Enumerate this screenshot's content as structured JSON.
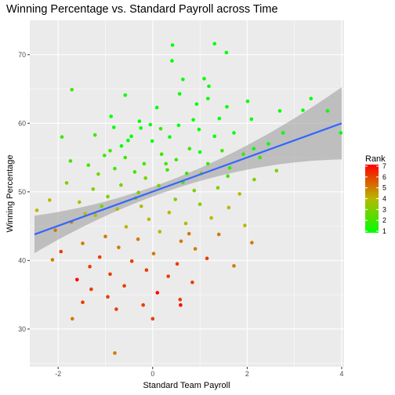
{
  "chart_data": {
    "type": "scatter",
    "title": "Winning Percentage vs. Standard Payroll across Time",
    "xlabel": "Standard Team Payroll",
    "ylabel": "Winning Percentage",
    "xlim": [
      -2.6,
      4.05
    ],
    "ylim": [
      24.5,
      75.0
    ],
    "x_ticks": [
      -2,
      0,
      2,
      4
    ],
    "y_ticks": [
      30,
      40,
      50,
      60,
      70
    ],
    "grid": true,
    "background": "#ebebeb",
    "trend_line": {
      "method": "linear",
      "x": [
        -2.5,
        4.0
      ],
      "y": [
        43.8,
        60.0
      ],
      "color": "#3366ff",
      "band_color": "#999999"
    },
    "legend": {
      "title": "Rank",
      "placement": "right",
      "labels": [
        "7",
        "6",
        "5",
        "4",
        "3",
        "2",
        "1"
      ],
      "values": [
        7,
        6,
        5,
        4,
        3,
        2,
        1
      ],
      "colors": {
        "low": "#00ff00",
        "mid": "#b8b800",
        "high": "#ff0000"
      }
    },
    "points": [
      [
        1.31,
        71.6,
        1
      ],
      [
        0.42,
        71.4,
        1
      ],
      [
        1.56,
        70.3,
        1
      ],
      [
        0.41,
        69.1,
        1
      ],
      [
        0.64,
        66.4,
        1
      ],
      [
        1.09,
        66.5,
        1
      ],
      [
        1.19,
        65.4,
        1
      ],
      [
        -1.71,
        64.9,
        2
      ],
      [
        0.57,
        64.3,
        1
      ],
      [
        -0.58,
        64.1,
        1
      ],
      [
        1.17,
        63.6,
        1
      ],
      [
        3.35,
        63.6,
        1
      ],
      [
        2.01,
        63.2,
        1
      ],
      [
        0.93,
        62.8,
        1
      ],
      [
        1.57,
        62.4,
        1
      ],
      [
        0.09,
        62.3,
        1
      ],
      [
        2.69,
        61.8,
        1
      ],
      [
        3.18,
        61.9,
        1
      ],
      [
        3.7,
        61.8,
        1
      ],
      [
        -0.88,
        61.0,
        1
      ],
      [
        0.86,
        60.5,
        1
      ],
      [
        1.41,
        60.7,
        1
      ],
      [
        2.09,
        60.6,
        1
      ],
      [
        -0.28,
        60.3,
        1
      ],
      [
        -0.05,
        59.8,
        1
      ],
      [
        0.55,
        59.7,
        1
      ],
      [
        -0.82,
        59.4,
        1
      ],
      [
        -0.25,
        59.3,
        1
      ],
      [
        0.17,
        59.2,
        2
      ],
      [
        0.98,
        59.1,
        1
      ],
      [
        1.72,
        58.6,
        1
      ],
      [
        2.76,
        58.6,
        1
      ],
      [
        3.98,
        58.6,
        1
      ],
      [
        -0.45,
        58.1,
        1
      ],
      [
        0.36,
        58.0,
        1
      ],
      [
        -1.22,
        58.3,
        2
      ],
      [
        -1.92,
        58.0,
        2
      ],
      [
        1.31,
        58.1,
        1
      ],
      [
        2.45,
        57.0,
        1
      ],
      [
        -0.01,
        57.4,
        1
      ],
      [
        -0.66,
        56.7,
        1
      ],
      [
        0.78,
        56.3,
        2
      ],
      [
        2.14,
        56.3,
        1
      ],
      [
        -0.9,
        56.0,
        2
      ],
      [
        1.0,
        55.8,
        1
      ],
      [
        0.19,
        55.5,
        2
      ],
      [
        -1.02,
        55.3,
        2
      ],
      [
        1.92,
        55.5,
        2
      ],
      [
        -0.58,
        55.0,
        2
      ],
      [
        2.27,
        55.0,
        2
      ],
      [
        0.5,
        54.7,
        2
      ],
      [
        -1.74,
        54.5,
        2
      ],
      [
        1.17,
        54.1,
        2
      ],
      [
        -0.18,
        54.1,
        2
      ],
      [
        -1.36,
        53.9,
        2
      ],
      [
        1.63,
        53.5,
        2
      ],
      [
        -0.8,
        53.4,
        2
      ],
      [
        0.31,
        53.2,
        2
      ],
      [
        2.62,
        53.1,
        3
      ],
      [
        -0.38,
        52.9,
        2
      ],
      [
        0.72,
        52.7,
        2
      ],
      [
        -1.15,
        52.6,
        3
      ],
      [
        1.59,
        52.3,
        2
      ],
      [
        -0.15,
        52.0,
        3
      ],
      [
        2.15,
        51.8,
        3
      ],
      [
        0.64,
        51.4,
        2
      ],
      [
        -1.82,
        51.3,
        3
      ],
      [
        -0.67,
        51.0,
        3
      ],
      [
        0.13,
        50.9,
        3
      ],
      [
        1.38,
        50.6,
        3
      ],
      [
        -1.26,
        50.4,
        3
      ],
      [
        0.88,
        50.2,
        3
      ],
      [
        -0.3,
        49.9,
        3
      ],
      [
        1.84,
        49.7,
        4
      ],
      [
        -0.95,
        49.3,
        3
      ],
      [
        -2.18,
        48.8,
        4
      ],
      [
        0.48,
        48.9,
        3
      ],
      [
        -1.55,
        48.5,
        4
      ],
      [
        1.0,
        48.2,
        3
      ],
      [
        -0.24,
        47.9,
        4
      ],
      [
        1.61,
        47.7,
        4
      ],
      [
        -0.75,
        47.5,
        4
      ],
      [
        -2.45,
        47.3,
        4
      ],
      [
        0.35,
        47.0,
        4
      ],
      [
        -1.21,
        46.6,
        4
      ],
      [
        1.24,
        46.2,
        4
      ],
      [
        -0.08,
        46.0,
        4
      ],
      [
        -1.72,
        45.6,
        5
      ],
      [
        0.7,
        45.4,
        4
      ],
      [
        1.95,
        45.1,
        4
      ],
      [
        -0.56,
        44.9,
        4
      ],
      [
        -2.06,
        44.4,
        5
      ],
      [
        0.15,
        44.2,
        4
      ],
      [
        1.4,
        43.8,
        5
      ],
      [
        -1.0,
        43.5,
        5
      ],
      [
        -0.31,
        43.1,
        5
      ],
      [
        0.6,
        42.8,
        5
      ],
      [
        -1.48,
        42.5,
        5
      ],
      [
        2.1,
        42.6,
        5
      ],
      [
        -0.72,
        41.9,
        5
      ],
      [
        0.9,
        41.7,
        5
      ],
      [
        -1.94,
        41.3,
        6
      ],
      [
        0.02,
        41.0,
        5
      ],
      [
        -1.12,
        40.5,
        6
      ],
      [
        1.15,
        40.3,
        6
      ],
      [
        -0.44,
        39.9,
        6
      ],
      [
        -2.12,
        40.1,
        5
      ],
      [
        0.52,
        39.5,
        6
      ],
      [
        -1.33,
        39.1,
        6
      ],
      [
        1.72,
        39.2,
        5
      ],
      [
        -0.13,
        38.6,
        6
      ],
      [
        -0.9,
        38.0,
        6
      ],
      [
        0.33,
        37.7,
        6
      ],
      [
        -1.6,
        37.2,
        7
      ],
      [
        0.84,
        36.8,
        6
      ],
      [
        -0.6,
        36.3,
        6
      ],
      [
        -1.3,
        35.8,
        6
      ],
      [
        0.1,
        35.3,
        7
      ],
      [
        -0.95,
        34.7,
        6
      ],
      [
        0.58,
        34.3,
        6
      ],
      [
        -1.48,
        33.9,
        6
      ],
      [
        -0.2,
        33.5,
        6
      ],
      [
        0.59,
        33.5,
        7
      ],
      [
        -0.77,
        32.9,
        6
      ],
      [
        -1.7,
        31.5,
        5
      ],
      [
        0.0,
        31.5,
        6
      ],
      [
        -0.8,
        26.5,
        5
      ],
      [
        -1.08,
        47.9,
        3
      ],
      [
        1.47,
        56.0,
        2
      ],
      [
        -0.52,
        57.5,
        1
      ],
      [
        0.28,
        54.1,
        2
      ],
      [
        1.03,
        52.7,
        3
      ],
      [
        -1.43,
        46.8,
        4
      ],
      [
        0.77,
        43.9,
        5
      ],
      [
        -0.36,
        49.1,
        3
      ]
    ]
  }
}
